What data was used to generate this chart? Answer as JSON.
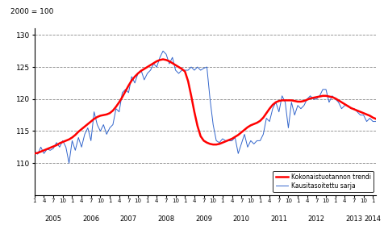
{
  "ylabel": "2000 = 100",
  "ylim": [
    105,
    131
  ],
  "yticks": [
    110,
    115,
    120,
    125,
    130
  ],
  "legend_trend": "Kokonaistuotannon trendi",
  "legend_seasonal": "Kausitasoitettu sarja",
  "trend_color": "#ff0000",
  "seasonal_color": "#3366cc",
  "trend_values": [
    111.5,
    111.6,
    111.8,
    112.0,
    112.2,
    112.4,
    112.6,
    112.8,
    113.1,
    113.3,
    113.5,
    113.7,
    114.0,
    114.4,
    114.9,
    115.3,
    115.7,
    116.1,
    116.5,
    116.9,
    117.2,
    117.4,
    117.5,
    117.6,
    117.8,
    118.2,
    118.8,
    119.5,
    120.3,
    121.2,
    122.1,
    122.9,
    123.5,
    124.0,
    124.4,
    124.7,
    125.0,
    125.3,
    125.6,
    125.9,
    126.1,
    126.2,
    126.1,
    125.9,
    125.6,
    125.3,
    125.0,
    124.7,
    124.3,
    122.8,
    120.5,
    118.0,
    115.8,
    114.2,
    113.5,
    113.2,
    113.0,
    112.9,
    112.9,
    113.0,
    113.2,
    113.4,
    113.6,
    113.8,
    114.1,
    114.4,
    114.8,
    115.2,
    115.6,
    115.9,
    116.1,
    116.3,
    116.6,
    117.1,
    117.8,
    118.5,
    119.1,
    119.5,
    119.7,
    119.8,
    119.8,
    119.8,
    119.8,
    119.7,
    119.6,
    119.6,
    119.7,
    119.9,
    120.1,
    120.2,
    120.3,
    120.4,
    120.5,
    120.5,
    120.4,
    120.3,
    120.1,
    119.8,
    119.5,
    119.2,
    118.9,
    118.6,
    118.4,
    118.2,
    118.0,
    117.8,
    117.6,
    117.4,
    117.1,
    116.9,
    116.7,
    116.6,
    116.5,
    116.5,
    116.5,
    116.4,
    116.3,
    116.2,
    116.2,
    116.1,
    116.0
  ],
  "seasonal_values": [
    111.8,
    111.4,
    112.5,
    111.5,
    112.2,
    112.0,
    112.3,
    113.2,
    112.5,
    113.5,
    112.5,
    110.0,
    113.5,
    112.0,
    114.0,
    112.5,
    114.5,
    115.5,
    113.5,
    118.0,
    116.0,
    115.0,
    116.0,
    114.5,
    115.5,
    116.0,
    118.5,
    118.0,
    121.0,
    121.5,
    121.0,
    123.5,
    122.5,
    124.0,
    124.5,
    123.0,
    124.0,
    124.5,
    125.5,
    125.0,
    126.5,
    127.5,
    127.0,
    125.5,
    126.5,
    124.5,
    124.0,
    124.5,
    124.5,
    124.5,
    125.0,
    124.5,
    125.0,
    124.5,
    124.8,
    125.0,
    120.0,
    116.0,
    113.5,
    113.2,
    113.8,
    113.5,
    113.5,
    113.5,
    114.0,
    111.5,
    113.0,
    114.5,
    112.5,
    113.5,
    113.0,
    113.5,
    113.5,
    114.5,
    117.0,
    116.5,
    118.5,
    119.5,
    118.0,
    120.5,
    119.5,
    115.5,
    119.5,
    117.5,
    119.0,
    118.5,
    119.0,
    120.0,
    120.5,
    120.0,
    120.0,
    120.5,
    121.5,
    121.5,
    119.5,
    120.5,
    120.0,
    119.5,
    118.5,
    119.0,
    119.0,
    118.5,
    118.5,
    118.0,
    117.5,
    117.5,
    116.5,
    117.0,
    116.5,
    116.5,
    117.5,
    116.5,
    117.0,
    116.5,
    116.5,
    117.0,
    116.0,
    116.5,
    116.0,
    115.5,
    116.5
  ],
  "xlim_start": 2005.0,
  "xlim_end": 2014.09
}
